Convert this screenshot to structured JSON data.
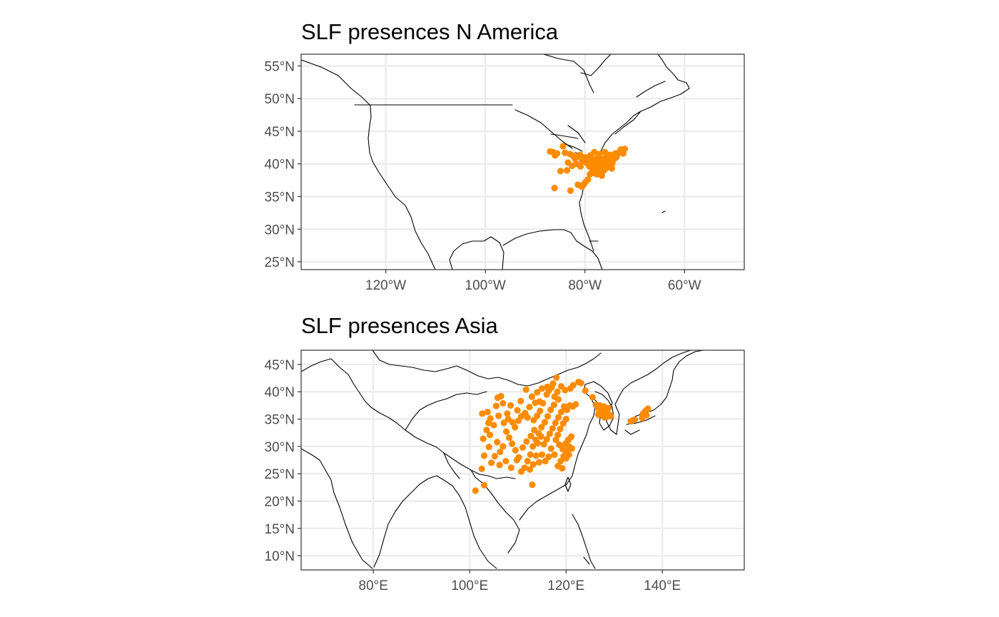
{
  "maps": [
    {
      "id": "na",
      "title": "SLF presences N America",
      "lon_range": [
        -137,
        -48
      ],
      "lat_range": [
        23.8,
        56.8
      ],
      "x_ticks": [
        {
          "value": -120,
          "label": "120°W"
        },
        {
          "value": -100,
          "label": "100°W"
        },
        {
          "value": -80,
          "label": "80°W"
        },
        {
          "value": -60,
          "label": "60°W"
        }
      ],
      "y_ticks": [
        {
          "value": 25,
          "label": "25°N"
        },
        {
          "value": 30,
          "label": "30°N"
        },
        {
          "value": 35,
          "label": "35°N"
        },
        {
          "value": 40,
          "label": "40°N"
        },
        {
          "value": 45,
          "label": "45°N"
        },
        {
          "value": 50,
          "label": "50°N"
        },
        {
          "value": 55,
          "label": "55°N"
        }
      ],
      "presences": [
        [
          -87.0,
          41.9
        ],
        [
          -86.4,
          41.8
        ],
        [
          -86.0,
          41.3
        ],
        [
          -85.6,
          41.6
        ],
        [
          -84.4,
          42.7
        ],
        [
          -84.0,
          41.7
        ],
        [
          -83.4,
          40.2
        ],
        [
          -83.0,
          41.5
        ],
        [
          -82.5,
          41.3
        ],
        [
          -82.0,
          40.8
        ],
        [
          -81.5,
          41.1
        ],
        [
          -81.0,
          41.4
        ],
        [
          -80.6,
          40.4
        ],
        [
          -80.1,
          40.4
        ],
        [
          -79.8,
          41.0
        ],
        [
          -79.6,
          40.1
        ],
        [
          -79.2,
          40.6
        ],
        [
          -78.9,
          41.3
        ],
        [
          -78.6,
          40.0
        ],
        [
          -78.3,
          40.7
        ],
        [
          -78.0,
          39.4
        ],
        [
          -77.8,
          40.2
        ],
        [
          -77.5,
          39.6
        ],
        [
          -77.3,
          40.9
        ],
        [
          -77.0,
          40.1
        ],
        [
          -76.8,
          39.3
        ],
        [
          -76.6,
          40.5
        ],
        [
          -76.3,
          39.9
        ],
        [
          -76.1,
          40.3
        ],
        [
          -75.9,
          40.9
        ],
        [
          -75.7,
          39.7
        ],
        [
          -75.5,
          40.2
        ],
        [
          -75.3,
          40.6
        ],
        [
          -75.1,
          39.9
        ],
        [
          -74.9,
          40.4
        ],
        [
          -74.7,
          40.8
        ],
        [
          -74.5,
          40.1
        ],
        [
          -74.3,
          40.6
        ],
        [
          -74.1,
          41.2
        ],
        [
          -73.9,
          41.6
        ],
        [
          -73.7,
          41.0
        ],
        [
          -73.5,
          41.4
        ],
        [
          -73.3,
          41.7
        ],
        [
          -73.0,
          41.9
        ],
        [
          -72.8,
          42.2
        ],
        [
          -72.5,
          42.0
        ],
        [
          -72.3,
          41.6
        ],
        [
          -72.0,
          42.3
        ],
        [
          -77.9,
          39.1
        ],
        [
          -77.4,
          38.8
        ],
        [
          -77.2,
          39.0
        ],
        [
          -78.5,
          39.0
        ],
        [
          -78.2,
          38.6
        ],
        [
          -79.0,
          38.4
        ],
        [
          -79.4,
          37.6
        ],
        [
          -79.8,
          37.3
        ],
        [
          -80.2,
          36.9
        ],
        [
          -80.6,
          36.5
        ],
        [
          -81.4,
          36.8
        ],
        [
          -77.6,
          38.4
        ],
        [
          -77.0,
          38.6
        ],
        [
          -76.6,
          38.2
        ],
        [
          -76.2,
          39.0
        ],
        [
          -75.8,
          39.3
        ],
        [
          -75.4,
          39.5
        ],
        [
          -82.9,
          35.9
        ],
        [
          -86.1,
          36.3
        ],
        [
          -84.9,
          38.9
        ],
        [
          -83.6,
          39.0
        ],
        [
          -82.6,
          39.7
        ],
        [
          -81.8,
          40.0
        ],
        [
          -80.9,
          39.6
        ],
        [
          -79.1,
          39.6
        ],
        [
          -78.1,
          41.8
        ],
        [
          -77.1,
          41.5
        ],
        [
          -76.0,
          41.8
        ],
        [
          -75.0,
          41.4
        ],
        [
          -74.6,
          39.3
        ],
        [
          -76.9,
          39.8
        ],
        [
          -76.4,
          40.7
        ],
        [
          -75.6,
          41.0
        ],
        [
          -77.7,
          40.8
        ],
        [
          -78.8,
          40.5
        ],
        [
          -79.4,
          40.9
        ],
        [
          -80.4,
          41.0
        ],
        [
          -75.2,
          40.0
        ],
        [
          -76.7,
          40.0
        ],
        [
          -76.0,
          40.0
        ],
        [
          -77.2,
          40.5
        ],
        [
          -75.4,
          40.8
        ]
      ],
      "colors": {
        "point": "#ff8c00"
      }
    },
    {
      "id": "asia",
      "title": "SLF presences Asia",
      "lon_range": [
        65,
        157
      ],
      "lat_range": [
        7.4,
        47.6
      ],
      "x_ticks": [
        {
          "value": 80,
          "label": "80°E"
        },
        {
          "value": 100,
          "label": "100°E"
        },
        {
          "value": 120,
          "label": "120°E"
        },
        {
          "value": 140,
          "label": "140°E"
        }
      ],
      "y_ticks": [
        {
          "value": 10,
          "label": "10°N"
        },
        {
          "value": 15,
          "label": "15°N"
        },
        {
          "value": 20,
          "label": "20°N"
        },
        {
          "value": 25,
          "label": "25°N"
        },
        {
          "value": 30,
          "label": "30°N"
        },
        {
          "value": 35,
          "label": "35°N"
        },
        {
          "value": 40,
          "label": "40°N"
        },
        {
          "value": 45,
          "label": "45°N"
        }
      ],
      "presences": [
        [
          101.2,
          21.9
        ],
        [
          103.0,
          22.9
        ],
        [
          113.0,
          23.0
        ],
        [
          102.5,
          25.9
        ],
        [
          104.5,
          27.0
        ],
        [
          103.0,
          28.3
        ],
        [
          104.0,
          29.9
        ],
        [
          102.8,
          31.4
        ],
        [
          104.2,
          32.1
        ],
        [
          105.0,
          33.9
        ],
        [
          103.5,
          33.0
        ],
        [
          102.6,
          36.0
        ],
        [
          103.7,
          36.3
        ],
        [
          105.8,
          38.9
        ],
        [
          106.5,
          39.2
        ],
        [
          106.0,
          35.6
        ],
        [
          105.5,
          37.4
        ],
        [
          107.1,
          34.3
        ],
        [
          108.0,
          35.0
        ],
        [
          108.9,
          34.4
        ],
        [
          109.4,
          33.5
        ],
        [
          110.1,
          34.7
        ],
        [
          110.7,
          35.5
        ],
        [
          111.5,
          36.1
        ],
        [
          112.4,
          37.2
        ],
        [
          112.0,
          35.3
        ],
        [
          113.3,
          34.8
        ],
        [
          114.0,
          35.6
        ],
        [
          114.6,
          36.5
        ],
        [
          115.2,
          37.9
        ],
        [
          116.0,
          39.5
        ],
        [
          116.4,
          40.2
        ],
        [
          117.0,
          40.8
        ],
        [
          117.6,
          39.1
        ],
        [
          118.2,
          40.0
        ],
        [
          119.0,
          41.0
        ],
        [
          118.4,
          38.6
        ],
        [
          117.5,
          37.6
        ],
        [
          116.8,
          36.7
        ],
        [
          116.2,
          35.5
        ],
        [
          115.6,
          34.4
        ],
        [
          114.9,
          33.5
        ],
        [
          114.3,
          32.4
        ],
        [
          113.7,
          31.2
        ],
        [
          113.1,
          30.0
        ],
        [
          112.6,
          28.5
        ],
        [
          112.0,
          27.3
        ],
        [
          111.4,
          26.1
        ],
        [
          110.7,
          25.4
        ],
        [
          110.2,
          28.0
        ],
        [
          109.5,
          29.3
        ],
        [
          108.8,
          30.5
        ],
        [
          108.2,
          31.6
        ],
        [
          107.6,
          32.7
        ],
        [
          106.9,
          30.0
        ],
        [
          106.3,
          29.0
        ],
        [
          105.7,
          30.8
        ],
        [
          105.2,
          28.2
        ],
        [
          106.2,
          26.6
        ],
        [
          107.5,
          27.3
        ],
        [
          108.6,
          26.1
        ],
        [
          109.8,
          27.5
        ],
        [
          111.0,
          29.8
        ],
        [
          111.8,
          30.9
        ],
        [
          112.7,
          31.9
        ],
        [
          113.4,
          33.0
        ],
        [
          114.1,
          30.6
        ],
        [
          114.8,
          31.8
        ],
        [
          115.4,
          30.4
        ],
        [
          116.0,
          31.3
        ],
        [
          116.6,
          32.3
        ],
        [
          117.2,
          33.3
        ],
        [
          117.8,
          34.3
        ],
        [
          118.4,
          35.3
        ],
        [
          119.0,
          36.3
        ],
        [
          119.6,
          37.3
        ],
        [
          120.2,
          36.7
        ],
        [
          120.8,
          37.5
        ],
        [
          121.4,
          37.3
        ],
        [
          122.0,
          37.7
        ],
        [
          120.0,
          35.0
        ],
        [
          119.4,
          34.2
        ],
        [
          118.8,
          33.2
        ],
        [
          118.3,
          32.1
        ],
        [
          117.9,
          31.2
        ],
        [
          118.6,
          30.3
        ],
        [
          119.3,
          29.5
        ],
        [
          119.9,
          30.5
        ],
        [
          120.5,
          31.2
        ],
        [
          121.1,
          31.8
        ],
        [
          120.6,
          30.0
        ],
        [
          120.1,
          29.0
        ],
        [
          119.5,
          28.2
        ],
        [
          118.9,
          27.3
        ],
        [
          118.3,
          26.4
        ],
        [
          119.2,
          26.0
        ],
        [
          120.0,
          27.8
        ],
        [
          120.6,
          28.5
        ],
        [
          121.2,
          29.6
        ],
        [
          117.6,
          28.5
        ],
        [
          116.9,
          29.6
        ],
        [
          116.4,
          28.1
        ],
        [
          115.7,
          27.3
        ],
        [
          115.0,
          28.5
        ],
        [
          114.4,
          27.1
        ],
        [
          113.8,
          28.3
        ],
        [
          113.2,
          26.7
        ],
        [
          112.5,
          25.8
        ],
        [
          114.5,
          38.2
        ],
        [
          113.6,
          38.0
        ],
        [
          112.9,
          39.1
        ],
        [
          111.7,
          40.4
        ],
        [
          110.6,
          38.3
        ],
        [
          109.9,
          36.6
        ],
        [
          108.5,
          37.5
        ],
        [
          107.8,
          36.0
        ],
        [
          106.9,
          37.9
        ],
        [
          104.3,
          35.1
        ],
        [
          103.9,
          34.3
        ],
        [
          119.8,
          40.3
        ],
        [
          121.5,
          41.2
        ],
        [
          122.6,
          41.8
        ],
        [
          123.1,
          41.6
        ],
        [
          120.9,
          40.6
        ],
        [
          118.0,
          42.6
        ],
        [
          117.3,
          41.5
        ],
        [
          116.1,
          40.9
        ],
        [
          115.0,
          40.6
        ],
        [
          114.0,
          39.9
        ],
        [
          124.0,
          40.2
        ],
        [
          125.5,
          39.0
        ],
        [
          126.2,
          37.6
        ],
        [
          126.6,
          37.2
        ],
        [
          127.0,
          37.5
        ],
        [
          127.4,
          37.0
        ],
        [
          127.8,
          36.8
        ],
        [
          128.2,
          36.3
        ],
        [
          128.6,
          36.0
        ],
        [
          129.0,
          35.8
        ],
        [
          129.3,
          35.5
        ],
        [
          127.2,
          35.9
        ],
        [
          126.9,
          36.5
        ],
        [
          127.6,
          35.7
        ],
        [
          128.0,
          35.3
        ],
        [
          128.5,
          35.5
        ],
        [
          126.7,
          35.8
        ],
        [
          127.9,
          37.3
        ],
        [
          128.8,
          37.0
        ],
        [
          136.0,
          36.0
        ],
        [
          136.5,
          36.5
        ],
        [
          137.0,
          36.9
        ],
        [
          136.7,
          35.7
        ],
        [
          134.3,
          34.9
        ],
        [
          133.5,
          34.6
        ],
        [
          135.8,
          35.2
        ]
      ],
      "colors": {
        "point": "#ff8c00"
      }
    }
  ]
}
